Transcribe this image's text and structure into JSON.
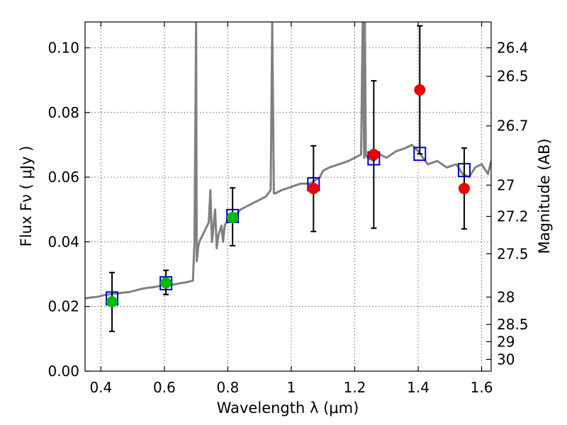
{
  "chart_data": {
    "type": "scatter",
    "xlabel": "Wavelength  λ (μm)",
    "ylabel": "Flux  Fν  ( μJy )",
    "ylabel_right": "Magnitude (AB)",
    "xlim": [
      0.35,
      1.63
    ],
    "ylim": [
      0.0,
      0.108
    ],
    "grid": true,
    "x_ticks": [
      0.4,
      0.6,
      0.8,
      1.0,
      1.2,
      1.4,
      1.6
    ],
    "x_tick_labels": [
      "0.4",
      "0.6",
      "0.8",
      "1",
      "1.2",
      "1.4",
      "1.6"
    ],
    "y_ticks": [
      0.0,
      0.02,
      0.04,
      0.06,
      0.08,
      0.1
    ],
    "y_tick_labels": [
      "0.00",
      "0.02",
      "0.04",
      "0.06",
      "0.08",
      "0.10"
    ],
    "right_axis": {
      "type": "magnitude_ab",
      "labels": [
        "26.4",
        "26.5",
        "26.7",
        "27",
        "27.2",
        "27.5",
        "28",
        "28.5",
        "29",
        "30"
      ],
      "values": [
        26.4,
        26.5,
        26.7,
        27.0,
        27.2,
        27.5,
        28.0,
        28.5,
        29.0,
        30.0
      ]
    },
    "colors": {
      "spectrum": "#808080",
      "model_marker": "#0000cc",
      "green_marker": "#00bb00",
      "red_marker": "#ee0000",
      "error_bar": "#000000"
    },
    "spectrum": {
      "x": [
        0.35,
        0.37,
        0.39,
        0.41,
        0.43,
        0.45,
        0.47,
        0.49,
        0.51,
        0.53,
        0.55,
        0.57,
        0.59,
        0.61,
        0.63,
        0.65,
        0.67,
        0.69,
        0.695,
        0.7,
        0.702,
        0.704,
        0.706,
        0.71,
        0.72,
        0.73,
        0.74,
        0.745,
        0.75,
        0.76,
        0.765,
        0.77,
        0.78,
        0.785,
        0.79,
        0.8,
        0.82,
        0.84,
        0.86,
        0.88,
        0.9,
        0.92,
        0.935,
        0.94,
        0.945,
        0.95,
        0.97,
        1.0,
        1.03,
        1.06,
        1.09,
        1.1,
        1.12,
        1.15,
        1.18,
        1.2,
        1.22,
        1.225,
        1.23,
        1.232,
        1.235,
        1.24,
        1.26,
        1.28,
        1.3,
        1.33,
        1.36,
        1.38,
        1.4,
        1.43,
        1.46,
        1.49,
        1.52,
        1.54,
        1.56,
        1.58,
        1.6,
        1.62,
        1.63
      ],
      "y": [
        0.0225,
        0.0228,
        0.023,
        0.0235,
        0.0238,
        0.024,
        0.0243,
        0.0245,
        0.025,
        0.0255,
        0.0258,
        0.026,
        0.0265,
        0.027,
        0.0268,
        0.0272,
        0.0275,
        0.028,
        0.04,
        0.108,
        0.034,
        0.036,
        0.038,
        0.04,
        0.042,
        0.044,
        0.046,
        0.056,
        0.04,
        0.05,
        0.038,
        0.042,
        0.045,
        0.04,
        0.045,
        0.047,
        0.048,
        0.05,
        0.051,
        0.052,
        0.053,
        0.054,
        0.056,
        0.108,
        0.055,
        0.055,
        0.056,
        0.057,
        0.058,
        0.058,
        0.06,
        0.062,
        0.063,
        0.064,
        0.065,
        0.066,
        0.067,
        0.108,
        0.066,
        0.108,
        0.067,
        0.066,
        0.065,
        0.067,
        0.066,
        0.068,
        0.069,
        0.07,
        0.068,
        0.064,
        0.065,
        0.063,
        0.064,
        0.061,
        0.06,
        0.063,
        0.064,
        0.061,
        0.065
      ]
    },
    "series": [
      {
        "marker": "open_square_blue",
        "x": [
          0.435,
          0.605,
          0.815,
          1.07,
          1.26,
          1.405,
          1.545
        ],
        "y": [
          0.0225,
          0.0272,
          0.048,
          0.0578,
          0.0658,
          0.0672,
          0.0622
        ]
      },
      {
        "marker": "filled_circle_green",
        "x": [
          0.435,
          0.605,
          0.815
        ],
        "y": [
          0.0215,
          0.0273,
          0.0475
        ],
        "yerr_low": [
          0.0123,
          0.0237,
          0.0388
        ],
        "yerr_high": [
          0.0305,
          0.0312,
          0.0567
        ]
      },
      {
        "marker": "filled_circle_red",
        "x": [
          1.07,
          1.26,
          1.405,
          1.545
        ],
        "y": [
          0.0565,
          0.067,
          0.087,
          0.0565
        ],
        "yerr_low": [
          0.0432,
          0.0442,
          0.0672,
          0.044
        ],
        "yerr_high": [
          0.0697,
          0.0898,
          0.1068,
          0.069
        ]
      }
    ]
  }
}
